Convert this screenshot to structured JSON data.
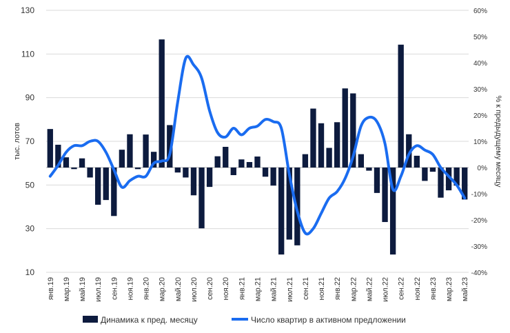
{
  "chart_data": {
    "type": "bar+line",
    "title": "",
    "ylabel_left": "тыс. лотов",
    "ylabel_right": "% к предыдущему месяцу",
    "left_axis": {
      "min": 10,
      "max": 130,
      "ticks": [
        "10",
        "30",
        "50",
        "70",
        "90",
        "110",
        "130"
      ]
    },
    "right_axis": {
      "min": -0.4,
      "max": 0.6,
      "ticks": [
        "-40%",
        "-30%",
        "-20%",
        "-10%",
        "0%",
        "10%",
        "20%",
        "30%",
        "40%",
        "50%",
        "60%"
      ]
    },
    "x_tick_labels": [
      "янв.19",
      "мар.19",
      "май.19",
      "июл.19",
      "сен.19",
      "ноя.19",
      "янв.20",
      "мар.20",
      "май.20",
      "июл.20",
      "сен.20",
      "ноя.20",
      "янв.21",
      "мар.21",
      "май.21",
      "июл.21",
      "сен.21",
      "ноя.21",
      "янв.22",
      "мар.22",
      "май.22",
      "июл.22",
      "сен.22",
      "ноя.22",
      "янв.23",
      "мар.23",
      "май.23"
    ],
    "legend": {
      "bars": "Динамика к пред. месяцу",
      "line": "Число квартир в активном предложении"
    },
    "colors": {
      "bars": "#0d1b3e",
      "line": "#1a6cf0",
      "grid": "#d9d9d9"
    },
    "bar_series": {
      "name": "Динамика к пред. месяцу",
      "axis": "right",
      "values": [
        0.147,
        0.087,
        0.039,
        -0.006,
        0.035,
        -0.038,
        -0.142,
        -0.124,
        -0.185,
        0.068,
        0.127,
        -0.006,
        0.126,
        0.06,
        0.489,
        0.162,
        -0.019,
        -0.038,
        -0.106,
        -0.232,
        -0.074,
        0.043,
        0.079,
        -0.029,
        0.031,
        0.021,
        0.042,
        -0.035,
        -0.069,
        -0.332,
        -0.275,
        -0.297,
        0.051,
        0.225,
        0.169,
        0.075,
        0.173,
        0.302,
        0.283,
        0.051,
        -0.012,
        -0.097,
        -0.208,
        -0.332,
        0.469,
        0.127,
        0.045,
        -0.051,
        -0.016,
        -0.115,
        -0.087,
        -0.069,
        -0.122
      ]
    },
    "line_series": {
      "name": "Число квартир в активном предложении",
      "axis": "left",
      "values": [
        54,
        59,
        65,
        68,
        68,
        70,
        70,
        65,
        57,
        49,
        52,
        54,
        54,
        60,
        61,
        64,
        88,
        108,
        105,
        99,
        84,
        74,
        72,
        76,
        73,
        76,
        77,
        80,
        79,
        76,
        55,
        38,
        28,
        30,
        37,
        44,
        47,
        53,
        63,
        77,
        81,
        79,
        69,
        48,
        54,
        64,
        68,
        66,
        64,
        58,
        54,
        50,
        44
      ]
    }
  }
}
